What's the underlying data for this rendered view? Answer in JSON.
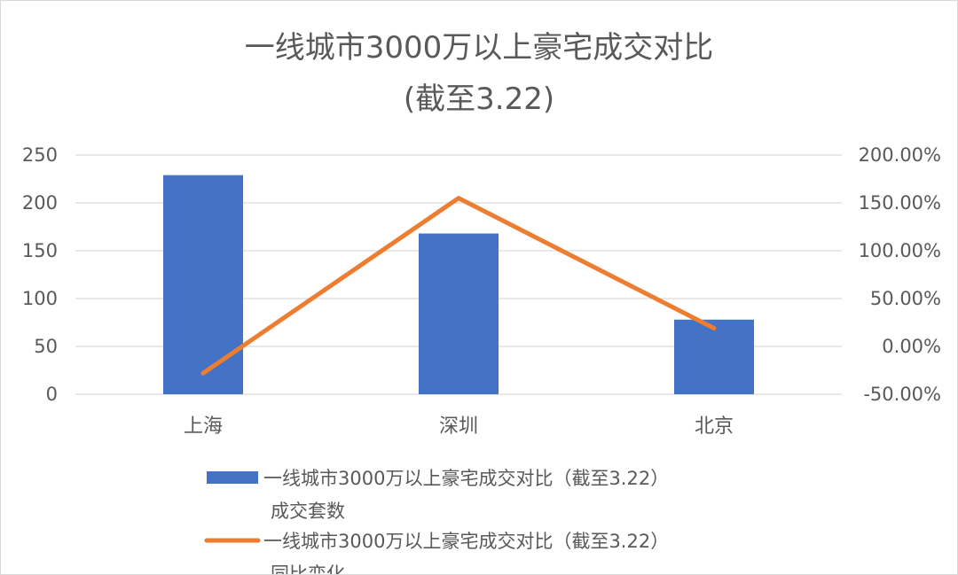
{
  "chart_data": {
    "type": "bar+line",
    "title_line1": "一线城市3000万以上豪宅成交对比",
    "title_line2": "(截至3.22)",
    "categories": [
      "上海",
      "深圳",
      "北京"
    ],
    "series": [
      {
        "name_line1": "一线城市3000万以上豪宅成交对比（截至3.22）",
        "name_line2": "成交套数",
        "type": "bar",
        "axis": "left",
        "color": "#4472C4",
        "values": [
          229,
          168,
          78
        ]
      },
      {
        "name_line1": "一线城市3000万以上豪宅成交对比（截至3.22）",
        "name_line2": "同比变化",
        "type": "line",
        "axis": "right",
        "color": "#ED7D31",
        "values": [
          -0.28,
          1.55,
          0.19
        ]
      }
    ],
    "left_axis": {
      "min": 0,
      "max": 250,
      "step": 50,
      "tick_labels": [
        "0",
        "50",
        "100",
        "150",
        "200",
        "250"
      ]
    },
    "right_axis": {
      "min": -0.5,
      "max": 2.0,
      "step": 0.5,
      "tick_labels": [
        "-50.00%",
        "0.00%",
        "50.00%",
        "100.00%",
        "150.00%",
        "200.00%"
      ]
    },
    "grid": true,
    "legend_position": "bottom"
  }
}
